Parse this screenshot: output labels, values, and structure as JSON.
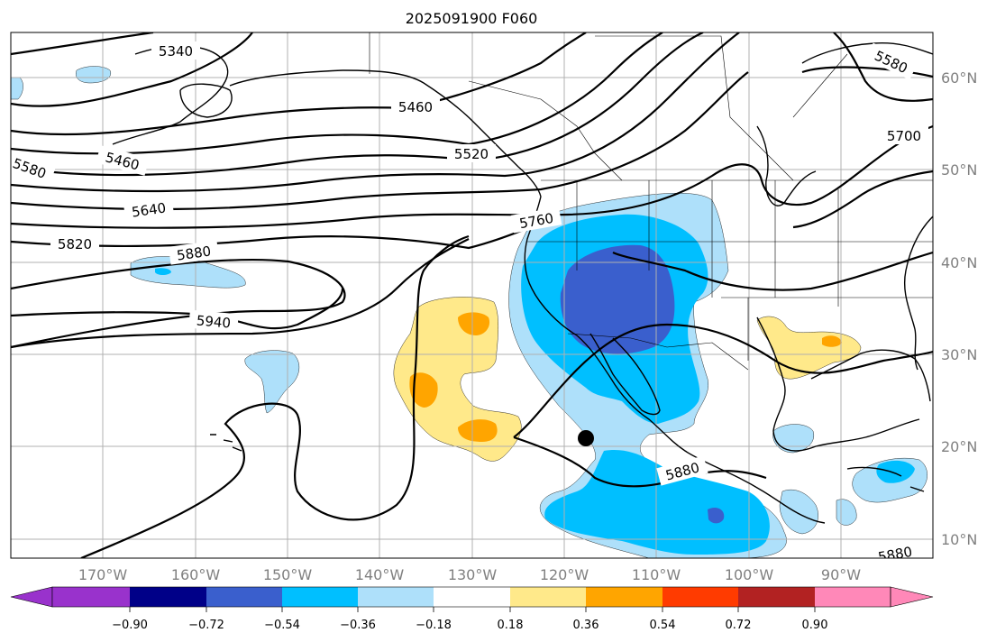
{
  "title": "2025091900 F060",
  "lon_labels": [
    "170°W",
    "160°W",
    "150°W",
    "140°W",
    "130°W",
    "120°W",
    "110°W",
    "100°W",
    "90°W"
  ],
  "lat_labels": [
    "60°N",
    "50°N",
    "40°N",
    "30°N",
    "20°N",
    "10°N"
  ],
  "colorbar": {
    "ticks": [
      "−0.90",
      "−0.72",
      "−0.54",
      "−0.36",
      "−0.18",
      "0.18",
      "0.36",
      "0.54",
      "0.72",
      "0.90"
    ],
    "colors": {
      "under": "#9932cc",
      "b1": "#000088",
      "b2": "#3a5fcd",
      "b3": "#00bfff",
      "b4": "#aee0fa",
      "b5": "#ffffff",
      "b6": "#ffe98a",
      "b7": "#ffa500",
      "b8": "#ff3b00",
      "b9": "#b22222",
      "over": "#ff88b8"
    }
  },
  "contour_labels": [
    "5340",
    "5460",
    "5520",
    "5460",
    "5580",
    "5640",
    "5760",
    "5820",
    "5880",
    "5940",
    "5880",
    "5580",
    "5700",
    "5880"
  ],
  "map": {
    "lon_range": [
      "180°W",
      "80°W"
    ],
    "lat_range": [
      "8°N",
      "65°N"
    ],
    "grid": true,
    "marker": "black-dot"
  }
}
